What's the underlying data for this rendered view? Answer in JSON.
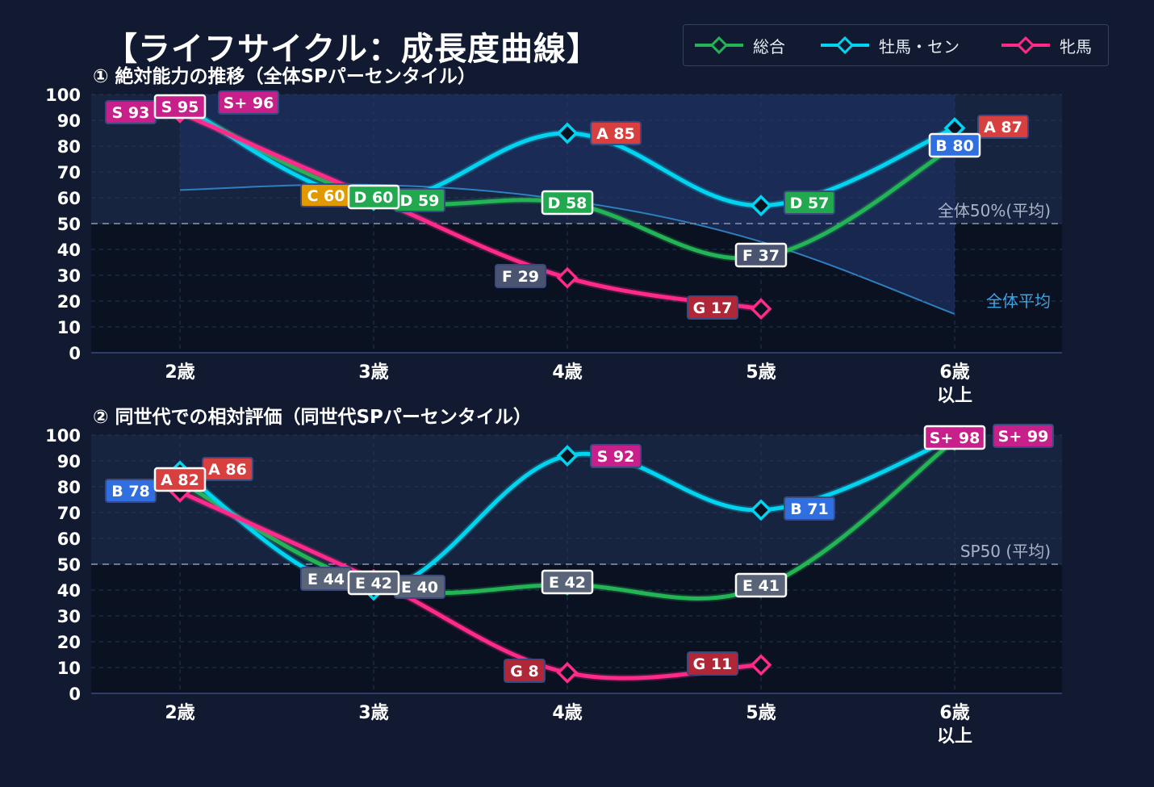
{
  "title": "【ライフサイクル：成長度曲線】",
  "colors": {
    "background": "#111a30",
    "plot_bg": "#0a1120",
    "overall": "#22b455",
    "colt_gelding": "#00d4f0",
    "filly": "#ff2a8a",
    "average_area": "#1c2f5e",
    "average_line": "#2e7fc0"
  },
  "legend": [
    {
      "label": "総合",
      "color": "#22b455",
      "icon": "diamond-line"
    },
    {
      "label": "牡馬・セン",
      "color": "#00d4f0",
      "icon": "diamond-line"
    },
    {
      "label": "牝馬",
      "color": "#ff2a8a",
      "icon": "diamond-line"
    }
  ],
  "chart_data": [
    {
      "type": "line",
      "title": "① 絶対能力の推移（全体SPパーセンタイル）",
      "categories": [
        "2歳",
        "3歳",
        "4歳",
        "5歳",
        "6歳\n以上"
      ],
      "ylim": [
        0,
        100
      ],
      "yticks": [
        0,
        10,
        20,
        30,
        40,
        50,
        60,
        70,
        80,
        90,
        100
      ],
      "grid": true,
      "series": [
        {
          "name": "総合",
          "values": [
            95,
            60,
            58,
            37,
            80
          ],
          "labels": [
            "S 95",
            "D 60",
            "D 58",
            "F 37",
            "B 80"
          ],
          "color": "#22b455"
        },
        {
          "name": "牡馬・セン",
          "values": [
            96,
            59,
            85,
            57,
            87
          ],
          "labels": [
            "S+ 96",
            "D 59",
            "A 85",
            "D 57",
            "A 87"
          ],
          "color": "#00d4f0"
        },
        {
          "name": "牝馬",
          "values": [
            93,
            60,
            29,
            17,
            null
          ],
          "labels": [
            "S 93",
            "C 60",
            "F 29",
            "G 17",
            ""
          ],
          "color": "#ff2a8a"
        }
      ],
      "reference_line": {
        "value": 50,
        "label": "全体50%(平均)"
      },
      "average_band": {
        "label": "全体平均",
        "values": [
          63,
          65,
          59,
          43,
          15
        ]
      },
      "label_colors": {
        "S+": "#c8208a",
        "S": "#c8208a",
        "A": "#d84040",
        "B": "#2f6fe0",
        "C": "#e09a00",
        "D": "#22a84f",
        "E": "#5a6478",
        "F": "#4a5470",
        "G": "#b02838"
      }
    },
    {
      "type": "line",
      "title": "② 同世代での相対評価（同世代SPパーセンタイル）",
      "categories": [
        "2歳",
        "3歳",
        "4歳",
        "5歳",
        "6歳\n以上"
      ],
      "ylim": [
        0,
        100
      ],
      "yticks": [
        0,
        10,
        20,
        30,
        40,
        50,
        60,
        70,
        80,
        90,
        100
      ],
      "grid": true,
      "series": [
        {
          "name": "総合",
          "values": [
            82,
            42,
            42,
            41,
            98
          ],
          "labels": [
            "A 82",
            "E 42",
            "E 42",
            "E 41",
            "S+ 98"
          ],
          "color": "#22b455"
        },
        {
          "name": "牡馬・セン",
          "values": [
            86,
            40,
            92,
            71,
            99
          ],
          "labels": [
            "A 86",
            "E 40",
            "S 92",
            "B 71",
            "S+ 99"
          ],
          "color": "#00d4f0"
        },
        {
          "name": "牝馬",
          "values": [
            78,
            44,
            8,
            11,
            null
          ],
          "labels": [
            "B 78",
            "E 44",
            "G 8",
            "G 11",
            ""
          ],
          "color": "#ff2a8a"
        }
      ],
      "reference_line": {
        "value": 50,
        "label": "SP50 (平均)"
      }
    }
  ]
}
